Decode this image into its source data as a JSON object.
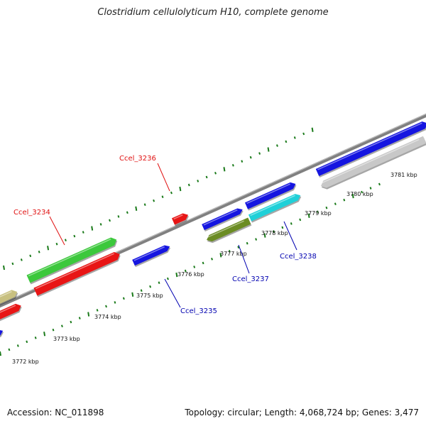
{
  "title": "Clostridium cellulolyticum H10, complete genome",
  "footer": {
    "accession": "Accession: NC_011898",
    "summary": "Topology: circular; Length: 4,068,724 bp; Genes: 3,477"
  },
  "ticks": [
    {
      "label": "3772 kbp"
    },
    {
      "label": "3773 kbp"
    },
    {
      "label": "3774 kbp"
    },
    {
      "label": "3775 kbp"
    },
    {
      "label": "3776 kbp"
    },
    {
      "label": "3777 kbp"
    },
    {
      "label": "3778 kbp"
    },
    {
      "label": "3779 kbp"
    },
    {
      "label": "3780 kbp"
    },
    {
      "label": "3781 kbp"
    }
  ],
  "genes": [
    {
      "label": "Ccel_3234",
      "color": "#e01010"
    },
    {
      "label": "Ccel_3235",
      "color": "#0000b0"
    },
    {
      "label": "Ccel_3236",
      "color": "#e01010"
    },
    {
      "label": "Ccel_3237",
      "color": "#0000b0"
    },
    {
      "label": "Ccel_3238",
      "color": "#0000b0"
    }
  ],
  "colors": {
    "backbone": "#808080",
    "tick_major": "#1a7a1a",
    "tick_minor": "#1a7a1a",
    "feature_blue": "#1515e0",
    "feature_red": "#e81515",
    "feature_green": "#3cc83c",
    "feature_olive": "#6b8c23",
    "feature_cyan": "#20d0d8",
    "feature_gray": "#c8c8c8",
    "feature_khaki": "#c8c080"
  }
}
